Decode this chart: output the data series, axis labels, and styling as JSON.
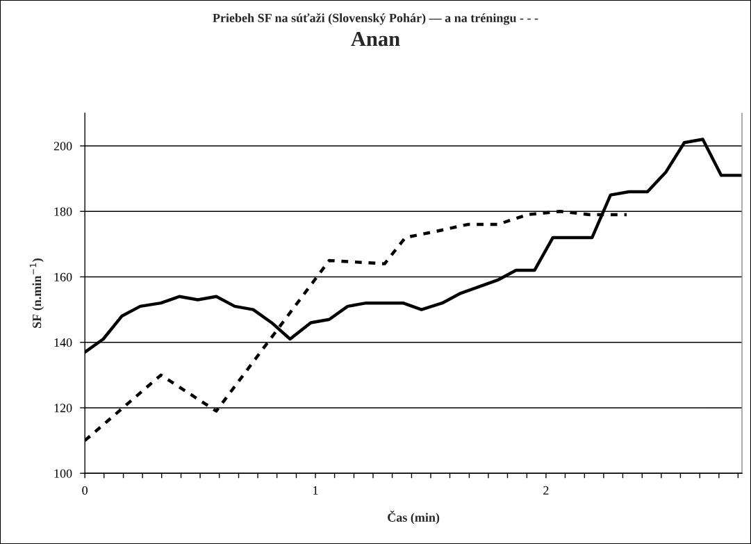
{
  "chart_data": {
    "type": "line",
    "title": "Priebeh SF na súťaži (Slovenský Pohár) — a na tréningu - - -",
    "subtitle": "Anan",
    "xlabel": "Čas (min)",
    "ylabel": "SF (n.min$^{−1}$)",
    "xlim": [
      0,
      2.85
    ],
    "ylim": [
      100,
      210
    ],
    "xticks": [
      0,
      {
        "value": 0.083,
        "label": null
      },
      {
        "value": 0.167,
        "label": null
      },
      {
        "value": 0.25,
        "label": null
      },
      {
        "value": 0.333,
        "label": null
      },
      {
        "value": 0.417,
        "label": null
      },
      {
        "value": 0.5,
        "label": null
      },
      {
        "value": 0.583,
        "label": null
      },
      {
        "value": 0.667,
        "label": null
      },
      {
        "value": 0.75,
        "label": null
      },
      {
        "value": 0.833,
        "label": null
      },
      {
        "value": 0.917,
        "label": null
      },
      1,
      {
        "value": 1.083,
        "label": null
      },
      {
        "value": 1.167,
        "label": null
      },
      {
        "value": 1.25,
        "label": null
      },
      {
        "value": 1.333,
        "label": null
      },
      {
        "value": 1.417,
        "label": null
      },
      {
        "value": 1.5,
        "label": null
      },
      {
        "value": 1.583,
        "label": null
      },
      {
        "value": 1.667,
        "label": null
      },
      {
        "value": 1.75,
        "label": null
      },
      {
        "value": 1.833,
        "label": null
      },
      {
        "value": 1.917,
        "label": null
      },
      2,
      {
        "value": 2.083,
        "label": null
      },
      {
        "value": 2.167,
        "label": null
      },
      {
        "value": 2.25,
        "label": null
      },
      {
        "value": 2.333,
        "label": null
      },
      {
        "value": 2.417,
        "label": null
      },
      {
        "value": 2.5,
        "label": null
      },
      {
        "value": 2.583,
        "label": null
      },
      {
        "value": 2.667,
        "label": null
      },
      {
        "value": 2.75,
        "label": null
      },
      {
        "value": 2.833,
        "label": null
      }
    ],
    "yticks": [
      100,
      120,
      140,
      160,
      180,
      200
    ],
    "grid": "y",
    "legend": false,
    "series": [
      {
        "color": "#000000",
        "line_style": "solid",
        "x": [
          0,
          0.08,
          0.16,
          0.24,
          0.33,
          0.41,
          0.49,
          0.57,
          0.65,
          0.73,
          0.81,
          0.89,
          0.98,
          1.06,
          1.14,
          1.22,
          1.3,
          1.38,
          1.46,
          1.55,
          1.63,
          1.71,
          1.79,
          1.87,
          1.95,
          2.03,
          2.11,
          2.2,
          2.28,
          2.36,
          2.44,
          2.52,
          2.6,
          2.68,
          2.76,
          2.85
        ],
        "values": [
          137,
          141,
          148,
          151,
          152,
          154,
          153,
          154,
          151,
          150,
          146,
          141,
          146,
          147,
          151,
          152,
          152,
          152,
          150,
          152,
          155,
          157,
          159,
          162,
          162,
          172,
          172,
          172,
          185,
          186,
          186,
          192,
          201,
          202,
          191,
          191
        ]
      },
      {
        "color": "#000000",
        "line_style": "dashed",
        "x": [
          0,
          0.33,
          0.57,
          1.06,
          1.3,
          1.39,
          1.53,
          1.66,
          1.79,
          1.92,
          2.06,
          2.19,
          2.35
        ],
        "values": [
          110,
          130,
          119,
          165,
          164,
          172,
          174,
          176,
          176,
          179,
          180,
          179,
          179
        ]
      }
    ]
  }
}
